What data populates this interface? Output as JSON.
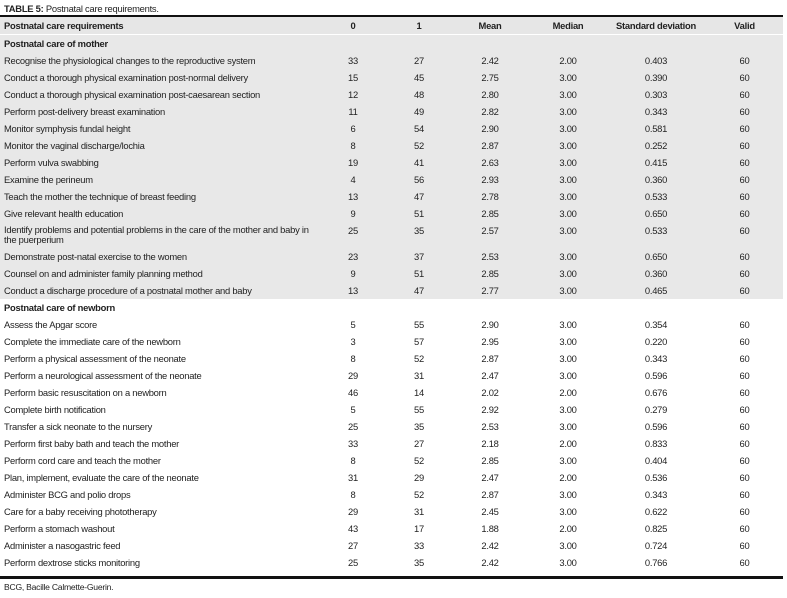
{
  "title": {
    "label": "TABLE 5:",
    "text": "Postnatal care requirements."
  },
  "columns": [
    "Postnatal care requirements",
    "0",
    "1",
    "Mean",
    "Median",
    "Standard deviation",
    "Valid"
  ],
  "sections": [
    {
      "heading": "Postnatal care of mother",
      "shaded": true,
      "rows": [
        [
          "Recognise the physiological changes to the reproductive system",
          "33",
          "27",
          "2.42",
          "2.00",
          "0.403",
          "60"
        ],
        [
          "Conduct a thorough physical examination post-normal delivery",
          "15",
          "45",
          "2.75",
          "3.00",
          "0.390",
          "60"
        ],
        [
          "Conduct a thorough physical examination post-caesarean section",
          "12",
          "48",
          "2.80",
          "3.00",
          "0.303",
          "60"
        ],
        [
          "Perform post-delivery breast examination",
          "11",
          "49",
          "2.82",
          "3.00",
          "0.343",
          "60"
        ],
        [
          "Monitor symphysis fundal height",
          "6",
          "54",
          "2.90",
          "3.00",
          "0.581",
          "60"
        ],
        [
          "Monitor the vaginal discharge/lochia",
          "8",
          "52",
          "2.87",
          "3.00",
          "0.252",
          "60"
        ],
        [
          "Perform vulva swabbing",
          "19",
          "41",
          "2.63",
          "3.00",
          "0.415",
          "60"
        ],
        [
          "Examine the perineum",
          "4",
          "56",
          "2.93",
          "3.00",
          "0.360",
          "60"
        ],
        [
          "Teach the mother the technique of breast feeding",
          "13",
          "47",
          "2.78",
          "3.00",
          "0.533",
          "60"
        ],
        [
          "Give relevant health education",
          "9",
          "51",
          "2.85",
          "3.00",
          "0.650",
          "60"
        ],
        [
          "Identify problems and potential problems in the care of the mother and baby in the puerperium",
          "25",
          "35",
          "2.57",
          "3.00",
          "0.533",
          "60"
        ],
        [
          "Demonstrate post-natal exercise to the women",
          "23",
          "37",
          "2.53",
          "3.00",
          "0.650",
          "60"
        ],
        [
          "Counsel on and administer family planning method",
          "9",
          "51",
          "2.85",
          "3.00",
          "0.360",
          "60"
        ],
        [
          "Conduct a discharge procedure of a postnatal mother and baby",
          "13",
          "47",
          "2.77",
          "3.00",
          "0.465",
          "60"
        ]
      ]
    },
    {
      "heading": "Postnatal care of newborn",
      "shaded": false,
      "rows": [
        [
          "Assess the Apgar score",
          "5",
          "55",
          "2.90",
          "3.00",
          "0.354",
          "60"
        ],
        [
          "Complete the immediate care of the newborn",
          "3",
          "57",
          "2.95",
          "3.00",
          "0.220",
          "60"
        ],
        [
          "Perform a physical assessment of the neonate",
          "8",
          "52",
          "2.87",
          "3.00",
          "0.343",
          "60"
        ],
        [
          "Perform a neurological assessment of the neonate",
          "29",
          "31",
          "2.47",
          "3.00",
          "0.596",
          "60"
        ],
        [
          "Perform basic resuscitation on a newborn",
          "46",
          "14",
          "2.02",
          "2.00",
          "0.676",
          "60"
        ],
        [
          "Complete birth notification",
          "5",
          "55",
          "2.92",
          "3.00",
          "0.279",
          "60"
        ],
        [
          "Transfer a sick neonate to the nursery",
          "25",
          "35",
          "2.53",
          "3.00",
          "0.596",
          "60"
        ],
        [
          "Perform first baby bath and teach the mother",
          "33",
          "27",
          "2.18",
          "2.00",
          "0.833",
          "60"
        ],
        [
          "Perform cord care and teach the mother",
          "8",
          "52",
          "2.85",
          "3.00",
          "0.404",
          "60"
        ],
        [
          "Plan, implement, evaluate the care of the neonate",
          "31",
          "29",
          "2.47",
          "2.00",
          "0.536",
          "60"
        ],
        [
          "Administer BCG and polio drops",
          "8",
          "52",
          "2.87",
          "3.00",
          "0.343",
          "60"
        ],
        [
          "Care for a baby receiving phototherapy",
          "29",
          "31",
          "2.45",
          "3.00",
          "0.622",
          "60"
        ],
        [
          "Perform a stomach washout",
          "43",
          "17",
          "1.88",
          "2.00",
          "0.825",
          "60"
        ],
        [
          "Administer a nasogastric feed",
          "27",
          "33",
          "2.42",
          "3.00",
          "0.724",
          "60"
        ],
        [
          "Perform dextrose sticks monitoring",
          "25",
          "35",
          "2.42",
          "3.00",
          "0.766",
          "60"
        ]
      ]
    }
  ],
  "footnote": "BCG, Bacille Calmette-Guerin."
}
